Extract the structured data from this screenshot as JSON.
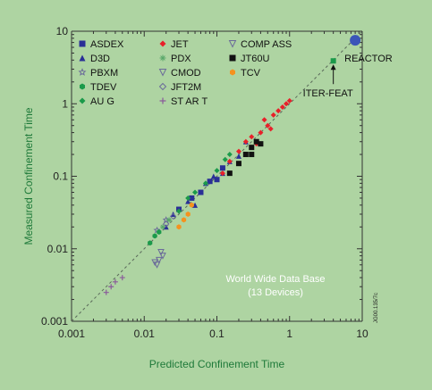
{
  "chart_data": {
    "type": "scatter",
    "title": "",
    "xlabel": "Predicted Confinement  Time",
    "ylabel": "Measured Confinement  Time",
    "xscale": "log",
    "yscale": "log",
    "xlim": [
      0.001,
      10
    ],
    "ylim": [
      0.001,
      10
    ],
    "x_ticks": [
      "0.001",
      "0.01",
      "0.1",
      "1",
      "10"
    ],
    "y_ticks": [
      "0.001",
      "0.01",
      "0.1",
      "1",
      "10"
    ],
    "grid": false,
    "legend_position": "top-left",
    "reference_line": "y = x (dashed)",
    "annotations": [
      {
        "text": "REACTOR",
        "x": 8.0,
        "y": 7.5
      },
      {
        "text": "ITER-FEAT",
        "x": 4.0,
        "y": 3.9
      }
    ],
    "inset_text": [
      "World Wide Data Base",
      "(13 Devices)"
    ],
    "side_code": "JG00.135/7c",
    "colors": {
      "background": "#aed4a2",
      "axis_label": "#1f7a3a",
      "line": "#5a6a5a"
    },
    "series": [
      {
        "name": "ASDEX",
        "marker": "square",
        "color": "#2a2f96",
        "points": [
          [
            0.03,
            0.035
          ],
          [
            0.045,
            0.05
          ],
          [
            0.06,
            0.06
          ],
          [
            0.08,
            0.085
          ],
          [
            0.1,
            0.09
          ],
          [
            0.12,
            0.13
          ]
        ]
      },
      {
        "name": "D3D",
        "marker": "triangle",
        "color": "#2a2f96",
        "points": [
          [
            0.02,
            0.02
          ],
          [
            0.025,
            0.03
          ],
          [
            0.04,
            0.045
          ],
          [
            0.05,
            0.04
          ],
          [
            0.07,
            0.08
          ],
          [
            0.09,
            0.1
          ],
          [
            0.12,
            0.11
          ],
          [
            0.15,
            0.16
          ],
          [
            0.2,
            0.19
          ],
          [
            0.25,
            0.3
          ]
        ]
      },
      {
        "name": "PBXM",
        "marker": "star",
        "color": "#6b6b9a",
        "points": [
          [
            0.015,
            0.018
          ],
          [
            0.02,
            0.025
          ]
        ]
      },
      {
        "name": "TDEV",
        "marker": "hexagon",
        "color": "#1b9a4a",
        "points": [
          [
            0.012,
            0.012
          ],
          [
            0.014,
            0.015
          ],
          [
            0.016,
            0.017
          ]
        ]
      },
      {
        "name": "AU G",
        "marker": "diamond",
        "color": "#1b9a4a",
        "points": [
          [
            0.03,
            0.033
          ],
          [
            0.04,
            0.05
          ],
          [
            0.05,
            0.06
          ],
          [
            0.07,
            0.08
          ],
          [
            0.1,
            0.12
          ],
          [
            0.13,
            0.17
          ],
          [
            0.15,
            0.2
          ]
        ]
      },
      {
        "name": "JET",
        "marker": "diamond",
        "color": "#e8202a",
        "points": [
          [
            0.12,
            0.11
          ],
          [
            0.15,
            0.16
          ],
          [
            0.2,
            0.22
          ],
          [
            0.25,
            0.3
          ],
          [
            0.3,
            0.35
          ],
          [
            0.4,
            0.4
          ],
          [
            0.5,
            0.5
          ],
          [
            0.6,
            0.7
          ],
          [
            0.7,
            0.8
          ],
          [
            0.8,
            0.9
          ],
          [
            0.9,
            1.0
          ],
          [
            1.0,
            1.1
          ],
          [
            0.45,
            0.6
          ],
          [
            0.35,
            0.28
          ],
          [
            0.55,
            0.45
          ]
        ]
      },
      {
        "name": "PDX",
        "marker": "asterisk",
        "color": "#5aa86a",
        "points": [
          [
            0.018,
            0.02
          ],
          [
            0.022,
            0.025
          ]
        ]
      },
      {
        "name": "CMOD",
        "marker": "triangle-down",
        "color": "#6b6b9a",
        "points": [
          [
            0.015,
            0.006
          ],
          [
            0.018,
            0.008
          ],
          [
            0.016,
            0.007
          ]
        ]
      },
      {
        "name": "JFT2M",
        "marker": "diamond-open",
        "color": "#6b6b9a",
        "points": [
          [
            0.02,
            0.022
          ],
          [
            0.025,
            0.028
          ]
        ]
      },
      {
        "name": "ST AR T",
        "marker": "plus",
        "color": "#8a5a9a",
        "points": [
          [
            0.003,
            0.0025
          ],
          [
            0.0035,
            0.003
          ],
          [
            0.004,
            0.0035
          ],
          [
            0.005,
            0.004
          ]
        ]
      },
      {
        "name": "COMP ASS",
        "marker": "triangle-down",
        "color": "#6b6b9a",
        "points": [
          [
            0.014,
            0.0065
          ],
          [
            0.017,
            0.009
          ]
        ]
      },
      {
        "name": "JT60U",
        "marker": "square",
        "color": "#111111",
        "points": [
          [
            0.15,
            0.11
          ],
          [
            0.2,
            0.15
          ],
          [
            0.25,
            0.2
          ],
          [
            0.3,
            0.25
          ],
          [
            0.35,
            0.3
          ],
          [
            0.3,
            0.2
          ],
          [
            0.4,
            0.28
          ]
        ]
      },
      {
        "name": "TCV",
        "marker": "hexagon",
        "color": "#f5921e",
        "points": [
          [
            0.03,
            0.02
          ],
          [
            0.035,
            0.025
          ],
          [
            0.04,
            0.03
          ],
          [
            0.045,
            0.04
          ]
        ]
      },
      {
        "name": "",
        "marker": "circle",
        "color": "#3b55b8",
        "points": [
          [
            8.0,
            7.5
          ]
        ]
      },
      {
        "name": "",
        "marker": "square",
        "color": "#1b9a4a",
        "points": [
          [
            4.0,
            3.9
          ]
        ]
      }
    ]
  }
}
